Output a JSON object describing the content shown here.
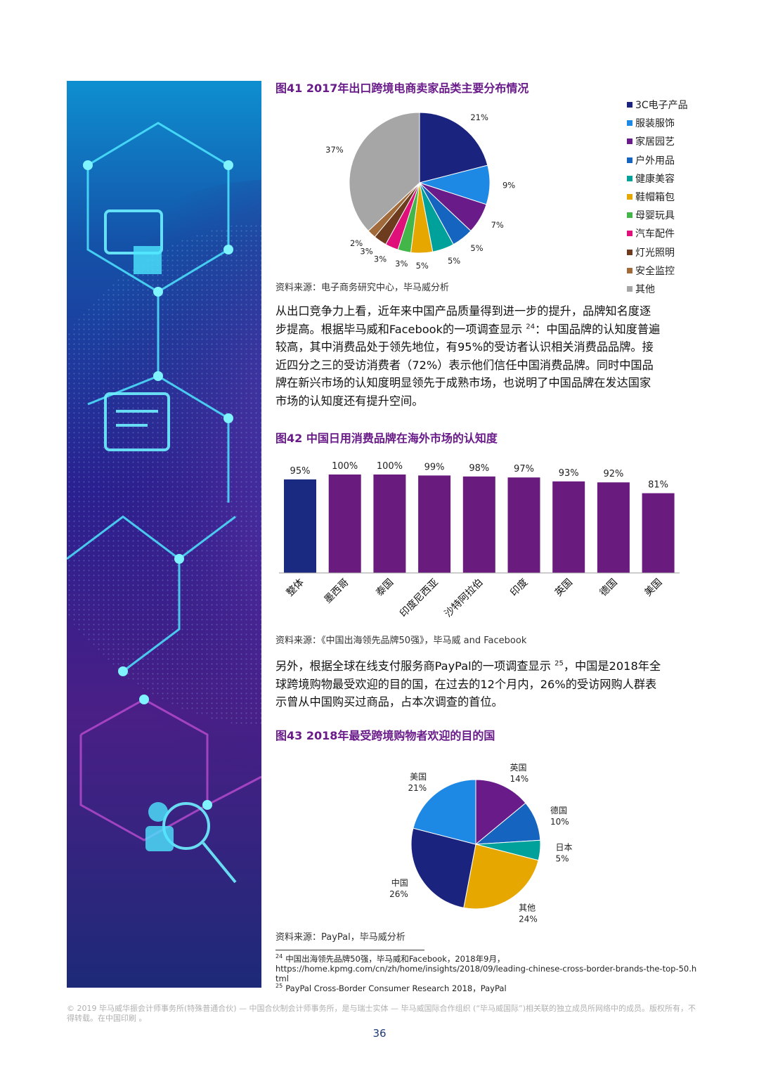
{
  "fig41": {
    "title": "图41  2017年出口跨境电商卖家品类主要分布情况",
    "source": "资料来源：电子商务研究中心，毕马威分析",
    "chart_data": {
      "type": "pie",
      "title": "图41  2017年出口跨境电商卖家品类主要分布情况",
      "categories": [
        "3C电子产品",
        "服装服饰",
        "家居园艺",
        "户外用品",
        "健康美容",
        "鞋帽箱包",
        "母婴玩具",
        "汽车配件",
        "灯光照明",
        "安全监控",
        "其他"
      ],
      "values": [
        21,
        9,
        7,
        5,
        5,
        5,
        3,
        3,
        3,
        2,
        37
      ],
      "value_labels": [
        "21%",
        "9%",
        "7%",
        "5%",
        "5%",
        "5%",
        "3%",
        "3%",
        "3%",
        "2%",
        "37%"
      ],
      "colors": [
        "#1a237e",
        "#1e88e5",
        "#6a1b8a",
        "#1565c0",
        "#00a19a",
        "#e6a800",
        "#43b649",
        "#e0107a",
        "#6d3b1e",
        "#a06a3a",
        "#a6a6a6"
      ],
      "legend": "right"
    }
  },
  "para1": {
    "line1": "从出口竞争力上看，近年来中国产品质量得到进一步的提升，品牌知名度逐",
    "line2a": "步提高。根据毕马威和Facebook的一项调查显示 ",
    "line2ref": "24",
    "line2b": "：中国品牌的认知度普遍",
    "line3": "较高，其中消费品处于领先地位，有95%的受访者认识相关消费品品牌。接",
    "line4": "近四分之三的受访消费者（72%）表示他们信任中国消费品牌。同时中国品",
    "line5": "牌在新兴市场的认知度明显领先于成熟市场，也说明了中国品牌在发达国家",
    "line6": "市场的认知度还有提升空间。"
  },
  "fig42": {
    "title": "图42  中国日用消费品牌在海外市场的认知度",
    "source": "资料来源：《中国出海领先品牌50强》，毕马威 and Facebook",
    "chart_data": {
      "type": "bar",
      "title": "图42  中国日用消费品牌在海外市场的认知度",
      "categories": [
        "整体",
        "墨西哥",
        "泰国",
        "印度尼西亚",
        "沙特阿拉伯",
        "印度",
        "英国",
        "德国",
        "美国"
      ],
      "values": [
        95,
        100,
        100,
        99,
        98,
        97,
        93,
        92,
        81
      ],
      "value_labels": [
        "95%",
        "100%",
        "100%",
        "99%",
        "98%",
        "97%",
        "93%",
        "92%",
        "81%"
      ],
      "ylim": [
        0,
        100
      ],
      "colors": [
        "#1a2a80",
        "#6a1b7e",
        "#6a1b7e",
        "#6a1b7e",
        "#6a1b7e",
        "#6a1b7e",
        "#6a1b7e",
        "#6a1b7e",
        "#6a1b7e"
      ],
      "grid": false
    }
  },
  "para2": {
    "line1a": "另外，根据全球在线支付服务商PayPal的一项调查显示 ",
    "line1ref": "25",
    "line1b": "，中国是2018年全",
    "line2": "球跨境购物最受欢迎的目的国，在过去的12个月内，26%的受访网购人群表",
    "line3": "示曾从中国购买过商品，占本次调查的首位。"
  },
  "fig43": {
    "title": "图43  2018年最受跨境购物者欢迎的目的国",
    "source": "资料来源：PayPal，毕马威分析",
    "chart_data": {
      "type": "pie",
      "title": "图43  2018年最受跨境购物者欢迎的目的国",
      "categories": [
        "英国",
        "德国",
        "日本",
        "其他",
        "中国",
        "美国"
      ],
      "values": [
        14,
        10,
        5,
        24,
        26,
        21
      ],
      "value_labels": [
        "14%",
        "10%",
        "5%",
        "24%",
        "26%",
        "21%"
      ],
      "colors": [
        "#6a1b8a",
        "#1565c0",
        "#00a19a",
        "#e6a800",
        "#1a237e",
        "#1e88e5"
      ]
    }
  },
  "footnotes": {
    "fn24_ref": "24",
    "fn24_text": "中国出海领先品牌50强，毕马威和Facebook，2018年9月，",
    "fn24_url": "https://home.kpmg.com/cn/zh/home/insights/2018/09/leading-chinese-cross-border-brands-the-top-50.html",
    "fn25_ref": "25",
    "fn25_text": "PayPal Cross-Border Consumer Research 2018，PayPal"
  },
  "footer": {
    "copyright": "© 2019 毕马威华振会计师事务所(特殊普通合伙) — 中国合伙制会计师事务所，是与瑞士实体 — 毕马威国际合作组织 (“毕马威国际”)相关联的独立成员所网络中的成员。版权所有，不得转载。在中国印刷 。",
    "page_number": "36"
  }
}
